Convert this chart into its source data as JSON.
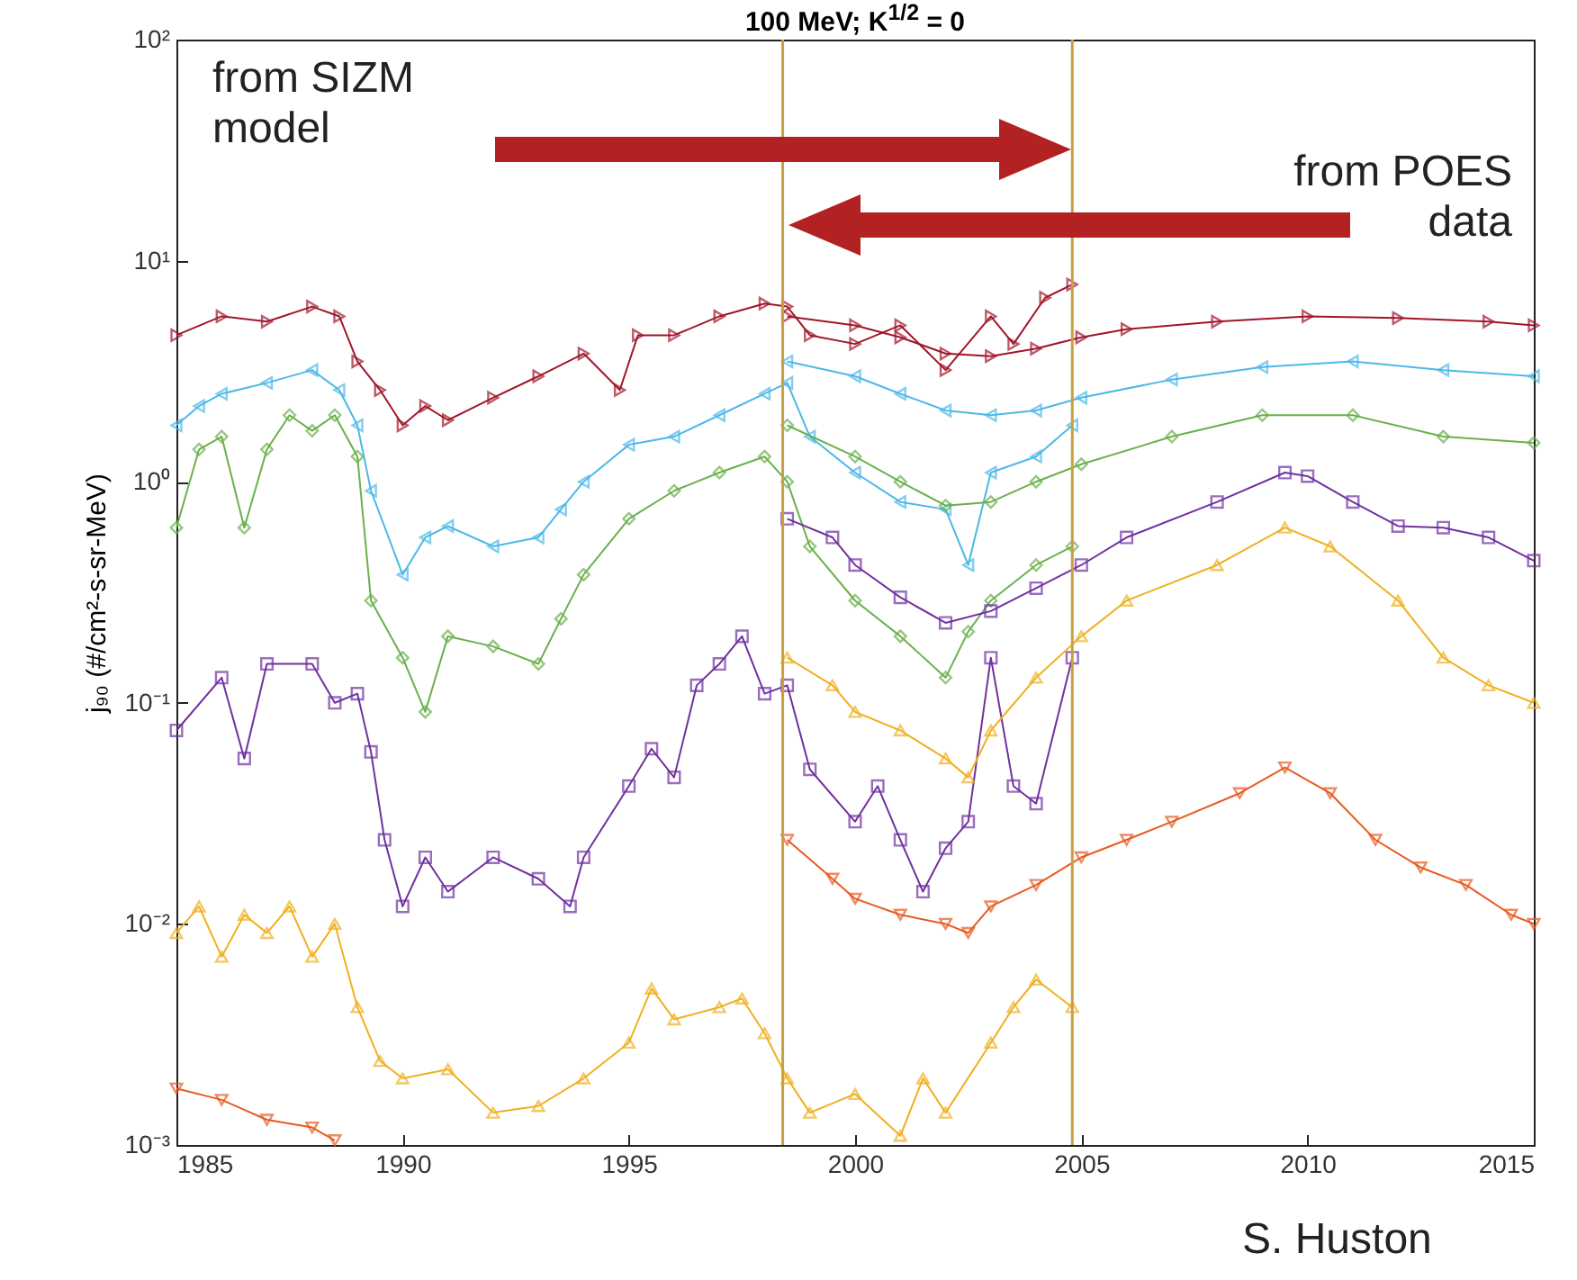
{
  "chart_data": {
    "type": "line",
    "title": "100 MeV; K$^{1/2}$ = 0",
    "ylabel": "j₉₀ (#/cm²-s-sr-MeV)",
    "annotations": [
      "from SIZM model",
      "from POES data",
      "S. Huston"
    ],
    "log": "y",
    "xlim": [
      1985,
      2015
    ],
    "xticks": [
      1985,
      1990,
      1995,
      2000,
      2005,
      2010,
      2015
    ],
    "ylim": [
      0.001,
      100
    ],
    "yticks": [
      {
        "value": 0.001,
        "label": "10⁻³"
      },
      {
        "value": 0.01,
        "label": "10⁻²"
      },
      {
        "value": 0.1,
        "label": "10⁻¹"
      },
      {
        "value": 1,
        "label": "10⁰"
      },
      {
        "value": 10,
        "label": "10¹"
      },
      {
        "value": 100,
        "label": "10²"
      }
    ],
    "ref_lines": [
      {
        "axis": "x",
        "value": 1998.4,
        "color": "#c8a040"
      },
      {
        "axis": "x",
        "value": 2004.8,
        "color": "#c8a040"
      }
    ],
    "series": [
      {
        "color": "#a0162a",
        "marker": "triangle-right",
        "x": [
          1985,
          1986,
          1987,
          1988,
          1988.6,
          1989,
          1989.5,
          1990,
          1990.5,
          1991,
          1992,
          1993,
          1994,
          1994.8,
          1995.2,
          1996,
          1997,
          1998,
          1998.5,
          1999,
          2000,
          2001,
          2002,
          2003,
          2003.5,
          2004.2,
          2004.8
        ],
        "values": [
          4.6,
          5.6,
          5.3,
          6.2,
          5.6,
          3.5,
          2.6,
          1.8,
          2.2,
          1.9,
          2.4,
          3.0,
          3.8,
          2.6,
          4.6,
          4.6,
          5.6,
          6.4,
          6.2,
          4.6,
          4.2,
          5.1,
          3.2,
          5.6,
          4.2,
          6.8,
          7.8
        ]
      },
      {
        "color": "#a0162a",
        "marker": "triangle-right",
        "x": [
          1998.5,
          2000,
          2001,
          2002,
          2003,
          2004,
          2005,
          2006,
          2008,
          2010,
          2012,
          2014,
          2015
        ],
        "values": [
          5.6,
          5.1,
          4.5,
          3.8,
          3.7,
          4.0,
          4.5,
          4.9,
          5.3,
          5.6,
          5.5,
          5.3,
          5.1
        ]
      },
      {
        "color": "#4db8e8",
        "marker": "triangle-left",
        "x": [
          1985,
          1985.5,
          1986,
          1987,
          1988,
          1988.6,
          1989,
          1989.3,
          1990,
          1990.5,
          1991,
          1992,
          1993,
          1993.5,
          1994,
          1995,
          1996,
          1997,
          1998,
          1998.5,
          1999,
          2000,
          2001,
          2002,
          2002.5,
          2003,
          2004,
          2004.8
        ],
        "values": [
          1.8,
          2.2,
          2.5,
          2.8,
          3.2,
          2.6,
          1.8,
          0.91,
          0.38,
          0.56,
          0.63,
          0.51,
          0.56,
          0.75,
          1.0,
          1.47,
          1.6,
          2.0,
          2.5,
          2.8,
          1.6,
          1.1,
          0.81,
          0.75,
          0.42,
          1.1,
          1.3,
          1.8
        ]
      },
      {
        "color": "#4db8e8",
        "marker": "triangle-left",
        "x": [
          1998.5,
          2000,
          2001,
          2002,
          2003,
          2004,
          2005,
          2007,
          2009,
          2011,
          2013,
          2015
        ],
        "values": [
          3.5,
          3.0,
          2.5,
          2.1,
          2.0,
          2.1,
          2.4,
          2.9,
          3.3,
          3.5,
          3.2,
          3.0
        ]
      },
      {
        "color": "#6ab04c",
        "marker": "diamond",
        "x": [
          1985,
          1985.5,
          1986,
          1986.5,
          1987,
          1987.5,
          1988,
          1988.5,
          1989,
          1989.3,
          1990,
          1990.5,
          1991,
          1992,
          1993,
          1993.5,
          1994,
          1995,
          1996,
          1997,
          1998,
          1998.5,
          1999,
          2000,
          2001,
          2002,
          2002.5,
          2003,
          2004,
          2004.8
        ],
        "values": [
          0.62,
          1.4,
          1.6,
          0.62,
          1.4,
          2.0,
          1.7,
          2.0,
          1.3,
          0.29,
          0.16,
          0.091,
          0.2,
          0.18,
          0.15,
          0.24,
          0.38,
          0.68,
          0.91,
          1.1,
          1.3,
          1.0,
          0.51,
          0.29,
          0.2,
          0.13,
          0.21,
          0.29,
          0.42,
          0.51
        ]
      },
      {
        "color": "#6ab04c",
        "marker": "diamond",
        "x": [
          1998.5,
          2000,
          2001,
          2002,
          2003,
          2004,
          2005,
          2007,
          2009,
          2011,
          2013,
          2015
        ],
        "values": [
          1.8,
          1.3,
          1.0,
          0.78,
          0.81,
          1.0,
          1.2,
          1.6,
          2.0,
          2.0,
          1.6,
          1.5
        ]
      },
      {
        "color": "#7030a0",
        "marker": "square",
        "x": [
          1985,
          1986,
          1986.5,
          1987,
          1988,
          1988.5,
          1989,
          1989.3,
          1989.6,
          1990,
          1990.5,
          1991,
          1992,
          1993,
          1993.7,
          1994,
          1995,
          1995.5,
          1996,
          1996.5,
          1997,
          1997.5,
          1998,
          1998.5,
          1999,
          2000,
          2000.5,
          2001,
          2001.5,
          2002,
          2002.5,
          2003,
          2003.5,
          2004,
          2004.8
        ],
        "values": [
          0.075,
          0.13,
          0.056,
          0.15,
          0.15,
          0.1,
          0.11,
          0.06,
          0.024,
          0.012,
          0.02,
          0.014,
          0.02,
          0.016,
          0.012,
          0.02,
          0.042,
          0.062,
          0.046,
          0.12,
          0.15,
          0.2,
          0.11,
          0.12,
          0.05,
          0.029,
          0.042,
          0.024,
          0.014,
          0.022,
          0.029,
          0.16,
          0.042,
          0.035,
          0.16
        ]
      },
      {
        "color": "#7030a0",
        "marker": "square",
        "x": [
          1998.5,
          1999.5,
          2000,
          2001,
          2002,
          2003,
          2004,
          2005,
          2006,
          2008,
          2009.5,
          2010,
          2011,
          2012,
          2013,
          2014,
          2015
        ],
        "values": [
          0.68,
          0.56,
          0.42,
          0.3,
          0.23,
          0.26,
          0.33,
          0.42,
          0.56,
          0.81,
          1.1,
          1.06,
          0.81,
          0.63,
          0.62,
          0.56,
          0.44
        ]
      },
      {
        "color": "#f0b020",
        "marker": "triangle-up",
        "x": [
          1985,
          1985.5,
          1986,
          1986.5,
          1987,
          1987.5,
          1988,
          1988.5,
          1989,
          1989.5,
          1990,
          1991,
          1992,
          1993,
          1994,
          1995,
          1995.5,
          1996,
          1997,
          1997.5,
          1998,
          1998.5,
          1999,
          2000,
          2001,
          2001.5,
          2002,
          2003,
          2003.5,
          2004,
          2004.8
        ],
        "values": [
          0.0091,
          0.012,
          0.0071,
          0.011,
          0.0091,
          0.012,
          0.0071,
          0.01,
          0.0042,
          0.0024,
          0.002,
          0.0022,
          0.0014,
          0.0015,
          0.002,
          0.0029,
          0.0051,
          0.0037,
          0.0042,
          0.0046,
          0.0032,
          0.002,
          0.0014,
          0.0017,
          0.0011,
          0.002,
          0.0014,
          0.0029,
          0.0042,
          0.0056,
          0.0042
        ]
      },
      {
        "color": "#f0b020",
        "marker": "triangle-up",
        "x": [
          1998.5,
          1999.5,
          2000,
          2001,
          2002,
          2002.5,
          2003,
          2004,
          2005,
          2006,
          2008,
          2009.5,
          2010.5,
          2012,
          2013,
          2014,
          2015
        ],
        "values": [
          0.16,
          0.12,
          0.091,
          0.075,
          0.056,
          0.046,
          0.075,
          0.13,
          0.2,
          0.29,
          0.42,
          0.62,
          0.51,
          0.29,
          0.16,
          0.12,
          0.1
        ]
      },
      {
        "color": "#e85a20",
        "marker": "triangle-down",
        "x": [
          1985,
          1986,
          1987,
          1988,
          1988.5
        ],
        "values": [
          0.0018,
          0.0016,
          0.0013,
          0.0012,
          0.00105
        ]
      },
      {
        "color": "#e85a20",
        "marker": "triangle-down",
        "x": [
          1998.5,
          1999.5,
          2000,
          2001,
          2002,
          2002.5,
          2003,
          2004,
          2005,
          2006,
          2007,
          2008.5,
          2009.5,
          2010.5,
          2011.5,
          2012.5,
          2013.5,
          2014.5,
          2015
        ],
        "values": [
          0.024,
          0.016,
          0.013,
          0.011,
          0.01,
          0.0091,
          0.012,
          0.015,
          0.02,
          0.024,
          0.029,
          0.039,
          0.051,
          0.039,
          0.024,
          0.018,
          0.015,
          0.011,
          0.01
        ]
      }
    ]
  }
}
